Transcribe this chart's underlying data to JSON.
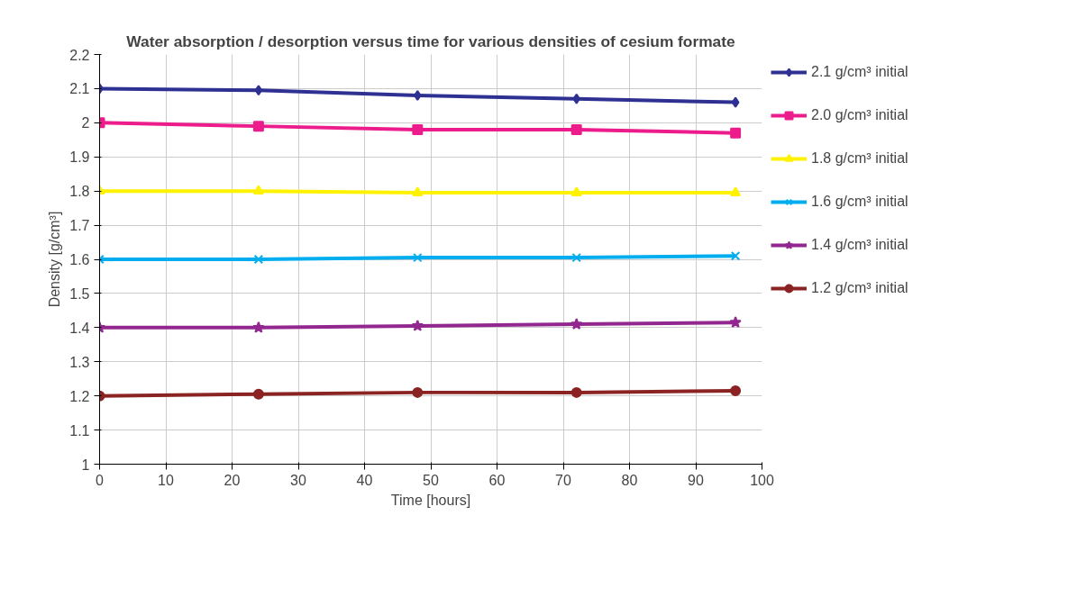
{
  "chart_data": {
    "type": "line",
    "title": "Water absorption / desorption versus time for various densities of cesium formate",
    "xlabel": "Time [hours]",
    "ylabel": "Density [g/cm³]",
    "x": [
      0,
      24,
      48,
      72,
      96
    ],
    "series": [
      {
        "name": "2.1 g/cm³ initial",
        "color": "#2e3192",
        "marker": "diamond",
        "values": [
          2.1,
          2.095,
          2.08,
          2.07,
          2.06
        ]
      },
      {
        "name": "2.0 g/cm³ initial",
        "color": "#ec1c8c",
        "marker": "square",
        "values": [
          2.0,
          1.99,
          1.98,
          1.98,
          1.97
        ]
      },
      {
        "name": "1.8 g/cm³ initial",
        "color": "#fff200",
        "marker": "triangle",
        "values": [
          1.8,
          1.8,
          1.795,
          1.795,
          1.795
        ]
      },
      {
        "name": "1.6 g/cm³ initial",
        "color": "#00aeef",
        "marker": "cross",
        "values": [
          1.6,
          1.6,
          1.605,
          1.605,
          1.61
        ]
      },
      {
        "name": "1.4 g/cm³ initial",
        "color": "#92278f",
        "marker": "star",
        "values": [
          1.4,
          1.4,
          1.405,
          1.41,
          1.415
        ]
      },
      {
        "name": "1.2 g/cm³ initial",
        "color": "#8b2323",
        "marker": "circle",
        "values": [
          1.2,
          1.205,
          1.21,
          1.21,
          1.215
        ]
      }
    ],
    "xlim": [
      0,
      100
    ],
    "xticks": [
      0,
      10,
      20,
      30,
      40,
      50,
      60,
      70,
      80,
      90,
      100
    ],
    "ylim": [
      1,
      2.2
    ],
    "yticks": [
      1,
      1.1,
      1.2,
      1.3,
      1.4,
      1.5,
      1.6,
      1.7,
      1.8,
      1.9,
      2,
      2.1,
      2.2
    ],
    "grid": true,
    "legend": "right",
    "line_style": "solid"
  }
}
